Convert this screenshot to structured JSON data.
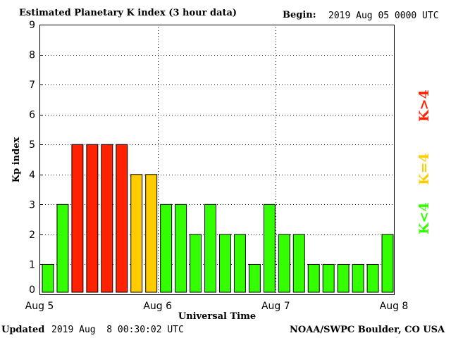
{
  "header": {
    "title": "Estimated Planetary K index (3 hour data)",
    "begin_label": "Begin:",
    "begin_value": "2019 Aug 05 0000 UTC"
  },
  "footer": {
    "updated_label": "Updated",
    "updated_value": "2019 Aug  8 00:30:02 UTC",
    "source": "NOAA/SWPC Boulder, CO USA"
  },
  "colors": {
    "low": "#33ff00",
    "mid": "#ffcc00",
    "high": "#ff2200",
    "bar_outline": "#000000",
    "grid": "#000000"
  },
  "legend": [
    {
      "label": "K<4",
      "color": "#33ff00"
    },
    {
      "label": "K=4",
      "color": "#ffcc00"
    },
    {
      "label": "K>4",
      "color": "#ff2200"
    }
  ],
  "chart_data": {
    "type": "bar",
    "title": "Estimated Planetary K index (3 hour data)",
    "xlabel": "Universal Time",
    "ylabel": "Kp index",
    "ylim": [
      0,
      9
    ],
    "yticks": [
      0,
      1,
      2,
      3,
      4,
      5,
      6,
      7,
      8,
      9
    ],
    "xticks": [
      "Aug 5",
      "Aug 6",
      "Aug 7",
      "Aug 8"
    ],
    "values": [
      1,
      3,
      5,
      5,
      5,
      5,
      4,
      4,
      3,
      3,
      2,
      3,
      2,
      2,
      1,
      3,
      2,
      2,
      1,
      1,
      1,
      1,
      1,
      2
    ],
    "grid": true,
    "legend_position": "right"
  }
}
